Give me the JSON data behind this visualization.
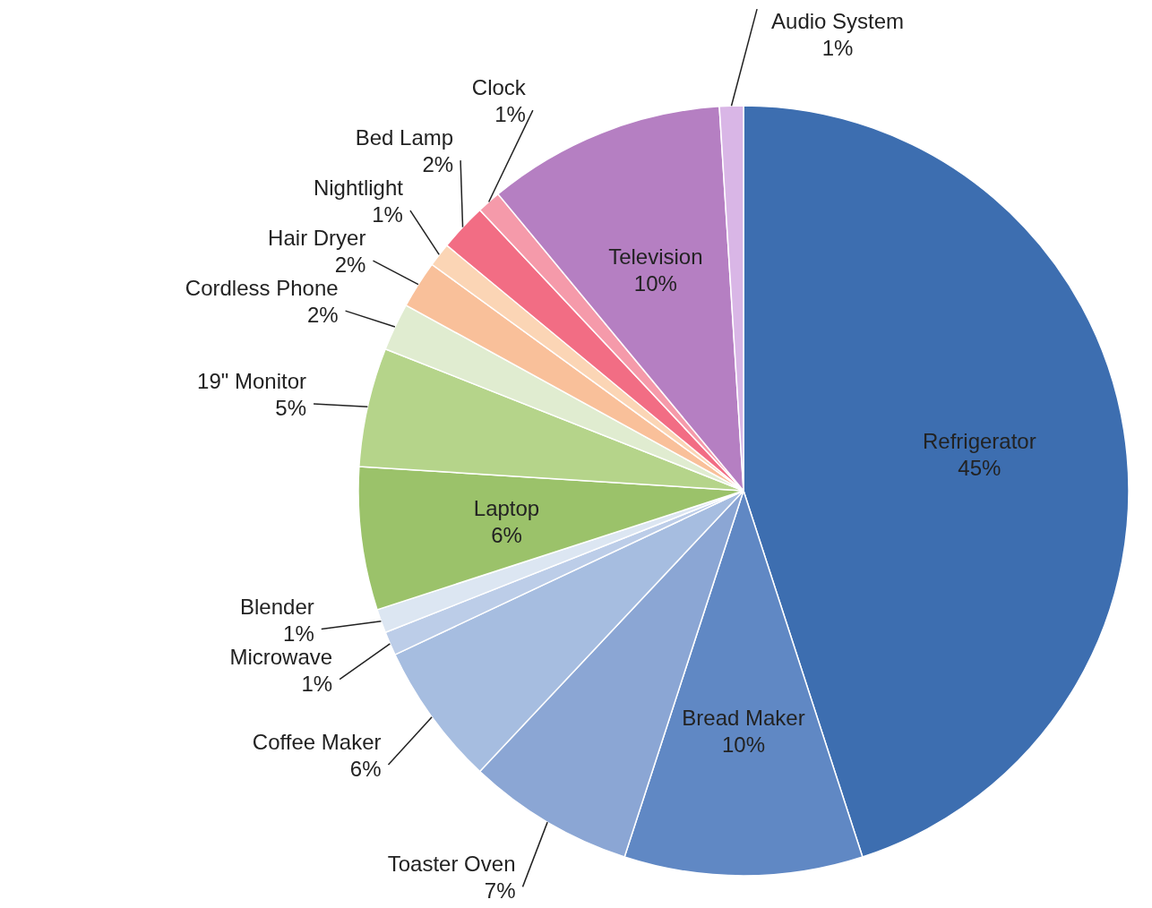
{
  "chart_data": {
    "type": "pie",
    "categories": [
      "Refrigerator",
      "Bread Maker",
      "Toaster Oven",
      "Coffee Maker",
      "Microwave",
      "Blender",
      "Laptop",
      "19\" Monitor",
      "Cordless Phone",
      "Hair Dryer",
      "Nightlight",
      "Bed Lamp",
      "Clock",
      "Television",
      "Audio System"
    ],
    "values": [
      45,
      10,
      7,
      6,
      1,
      1,
      6,
      5,
      2,
      2,
      1,
      2,
      1,
      10,
      1
    ],
    "value_labels": [
      "45%",
      "10%",
      "7%",
      "6%",
      "1%",
      "1%",
      "6%",
      "5%",
      "2%",
      "2%",
      "1%",
      "2%",
      "1%",
      "10%",
      "1%"
    ],
    "colors": [
      "#3d6eb0",
      "#6088c4",
      "#8ba6d4",
      "#a6bde0",
      "#bccde8",
      "#dce6f2",
      "#9bc26a",
      "#b5d48a",
      "#e0ecd0",
      "#f9c09a",
      "#fbd5b5",
      "#f26d84",
      "#f59aaa",
      "#b57fc2",
      "#d9b6e6"
    ]
  }
}
